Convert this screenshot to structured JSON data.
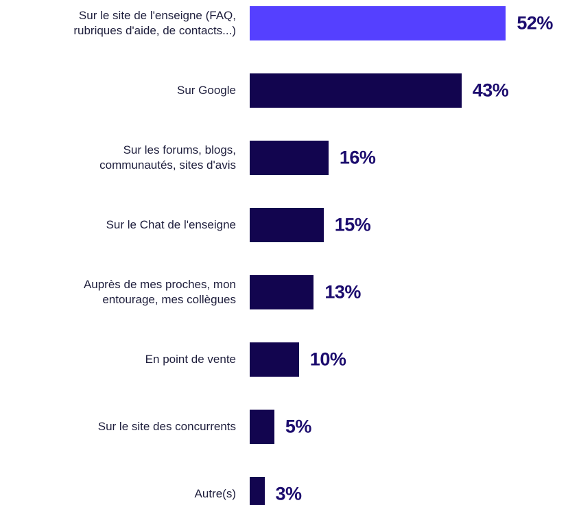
{
  "chart_data": {
    "type": "bar",
    "orientation": "horizontal",
    "categories": [
      "Sur le site de l'enseigne (FAQ,\nrubriques d'aide, de contacts...)",
      "Sur Google",
      "Sur les forums, blogs,\ncommunautés, sites d'avis",
      "Sur le Chat de l'enseigne",
      "Auprès de mes proches, mon\nentourage, mes collègues",
      "En point de vente",
      "Sur le site des concurrents",
      "Autre(s)"
    ],
    "values": [
      52,
      43,
      16,
      15,
      13,
      10,
      5,
      3
    ],
    "value_labels": [
      "52%",
      "43%",
      "16%",
      "15%",
      "13%",
      "10%",
      "5%",
      "3%"
    ],
    "colors": [
      "#5540ff",
      "#12054f",
      "#12054f",
      "#12054f",
      "#12054f",
      "#12054f",
      "#12054f",
      "#12054f"
    ]
  }
}
